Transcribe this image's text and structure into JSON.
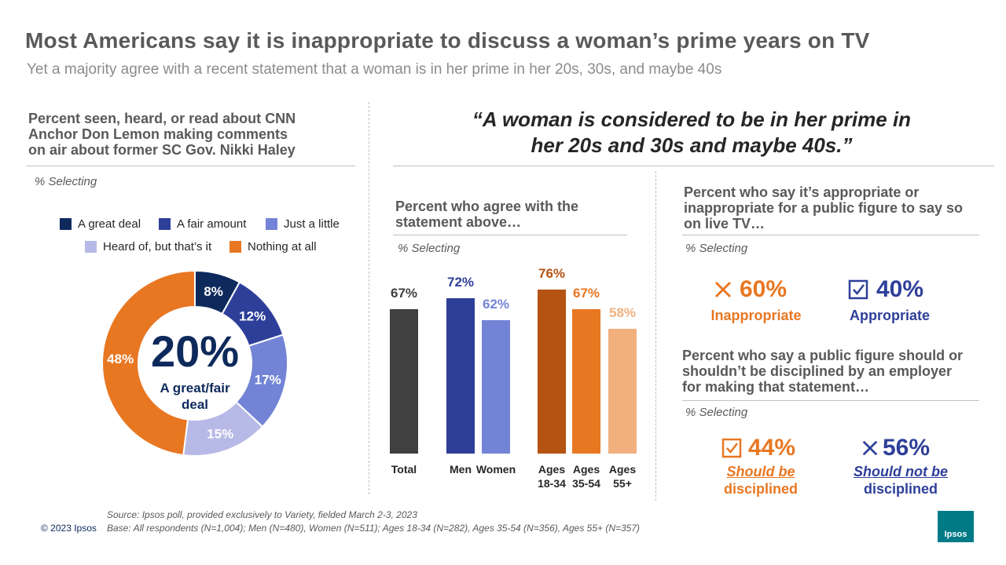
{
  "header": {
    "title": "Most Americans say it is inappropriate to discuss a woman’s prime years on TV",
    "subtitle": "Yet a majority agree with a recent statement that a woman is in her prime in her 20s, 30s, and maybe 40s"
  },
  "left": {
    "question": [
      "Percent seen, heard, or read about CNN",
      "Anchor Don Lemon making comments",
      "on air about former SC Gov. Nikki Haley"
    ],
    "selecting": "% Selecting",
    "legend": [
      "A great deal",
      "A fair amount",
      "Just a little",
      "Heard of, but that’s it",
      "Nothing at all"
    ],
    "center_value": "20%",
    "center_label": [
      "A great/fair",
      "deal"
    ]
  },
  "quote": [
    "“A woman is considered to be in her prime in",
    "her 20s and 30s and maybe 40s.”"
  ],
  "middle": {
    "question": [
      "Percent who agree with the",
      "statement above…"
    ],
    "selecting": "% Selecting"
  },
  "right": {
    "q1": [
      "Percent who say it’s appropriate or",
      "inappropriate for a public figure to say so",
      "on live TV…"
    ],
    "selecting1": "% Selecting",
    "inappropriate_value": "60%",
    "inappropriate_label": "Inappropriate",
    "appropriate_value": "40%",
    "appropriate_label": "Appropriate",
    "q2": [
      "Percent who say a public figure should or",
      "shouldn’t be disciplined by an employer",
      "for making that statement…"
    ],
    "selecting2": "% Selecting",
    "should_value": "44%",
    "should_label": [
      "Should be",
      "disciplined"
    ],
    "shouldnot_value": "56%",
    "shouldnot_label": [
      "Should not be",
      "disciplined"
    ]
  },
  "footer": {
    "source": "Source: Ipsos poll, provided exclusively to Variety, fielded March 2-3, 2023",
    "base": "Base: All respondents (N=1,004); Men (N=480), Women (N=511); Ages 18-34 (N=282), Ages 35-54 (N=356), Ages 55+ (N=357)",
    "copyright": "© 2023 Ipsos",
    "logo": "Ipsos"
  },
  "colors": {
    "navy": "#0e2a5c",
    "blue": "#2e3f99",
    "lightblue": "#7384d6",
    "lavender": "#b7b9e6",
    "orange": "#e87722",
    "darkorange": "#b55312",
    "peach": "#f2b07e",
    "gray": "#404040",
    "logo": "#007a87"
  },
  "chart_data": [
    {
      "type": "pie",
      "title": "Percent seen, heard, or read about CNN Anchor Don Lemon making comments on air about former SC Gov. Nikki Haley",
      "categories": [
        "A great deal",
        "A fair amount",
        "Just a little",
        "Heard of, but that’s it",
        "Nothing at all"
      ],
      "values": [
        8,
        12,
        17,
        15,
        48
      ],
      "labels": [
        "8%",
        "12%",
        "17%",
        "15%",
        "48%"
      ],
      "colors": [
        "#0e2a5c",
        "#2e3f99",
        "#7384d6",
        "#b7b9e6",
        "#e87722"
      ],
      "donut": true
    },
    {
      "type": "bar",
      "title": "Percent who agree with the statement above…",
      "categories": [
        "Total",
        "Men",
        "Women",
        "Ages 18-34",
        "Ages 35-54",
        "Ages 55+"
      ],
      "category_lines": [
        [
          "Total"
        ],
        [
          "Men"
        ],
        [
          "Women"
        ],
        [
          "Ages",
          "18-34"
        ],
        [
          "Ages",
          "35-54"
        ],
        [
          "Ages",
          "55+"
        ]
      ],
      "values": [
        67,
        72,
        62,
        76,
        67,
        58
      ],
      "labels": [
        "67%",
        "72%",
        "62%",
        "76%",
        "67%",
        "58%"
      ],
      "colors": [
        "#404040",
        "#2e3f99",
        "#7384d6",
        "#b55312",
        "#e87722",
        "#f2b07e"
      ],
      "ylim": [
        0,
        100
      ]
    }
  ]
}
